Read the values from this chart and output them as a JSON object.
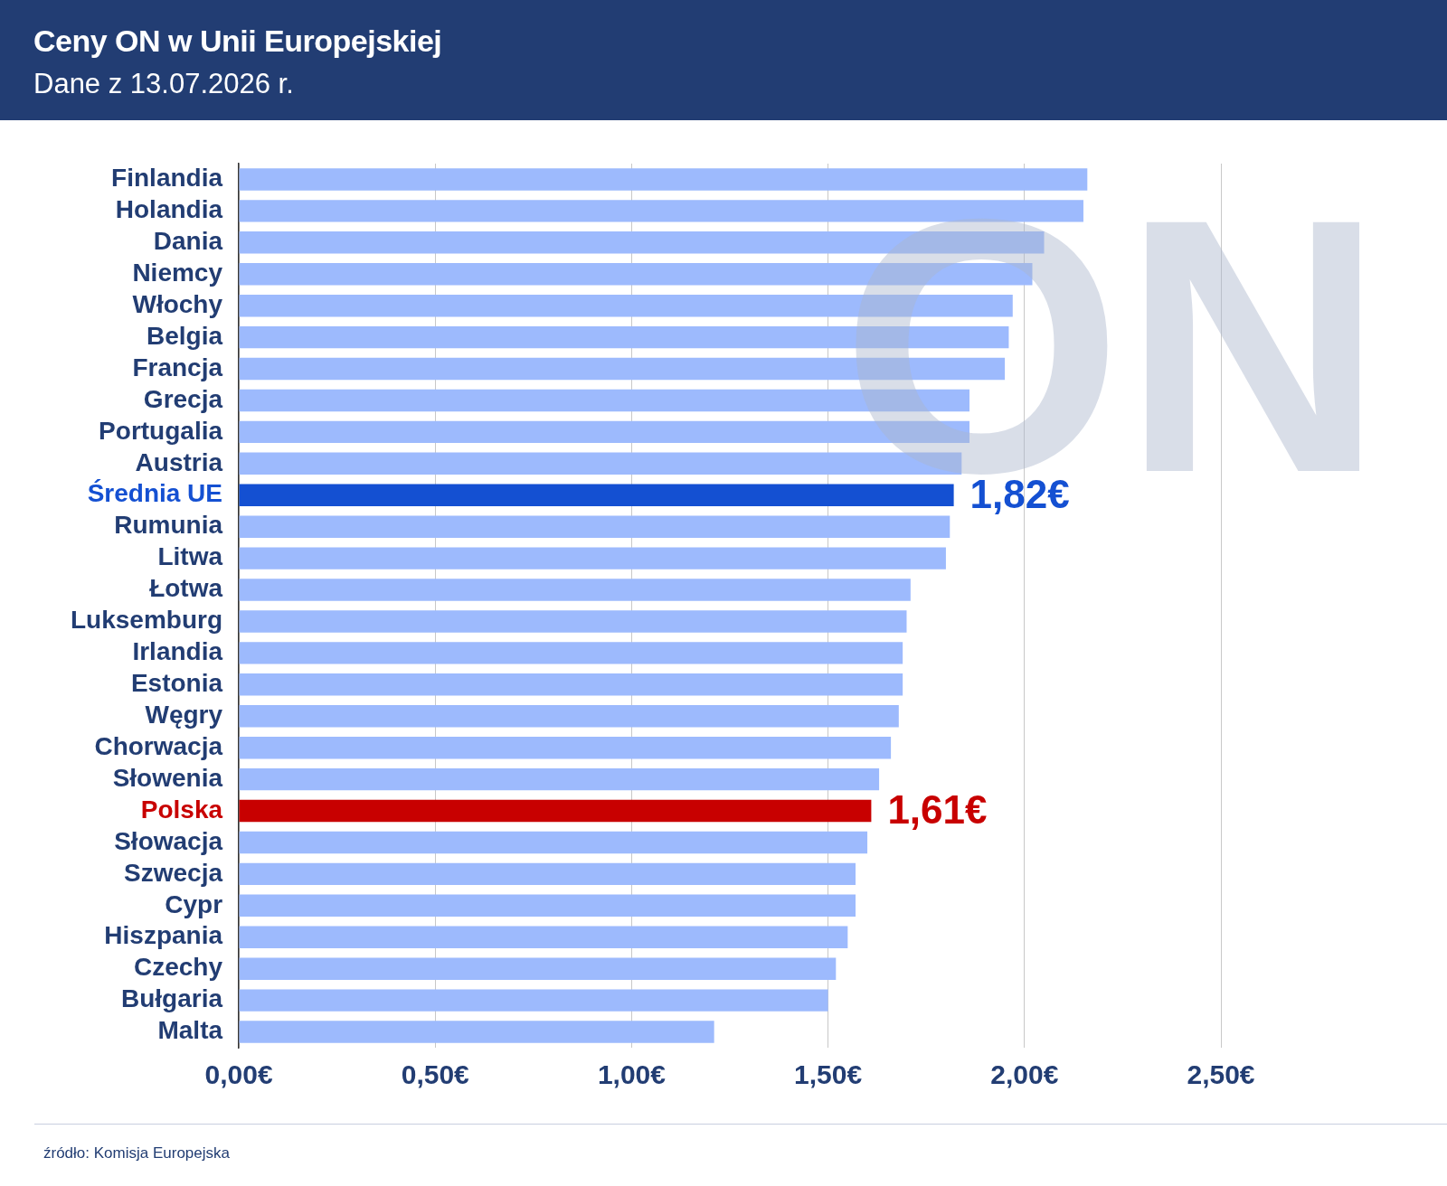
{
  "chart_data": {
    "type": "bar",
    "orientation": "horizontal",
    "title": "Ceny ON w Unii Europejskiej",
    "subtitle": "Dane z 13.07.2026 r.",
    "categories": [
      "Finlandia",
      "Holandia",
      "Dania",
      "Niemcy",
      "Włochy",
      "Belgia",
      "Francja",
      "Grecja",
      "Portugalia",
      "Austria",
      "Średnia UE",
      "Rumunia",
      "Litwa",
      "Łotwa",
      "Luksemburg",
      "Irlandia",
      "Estonia",
      "Węgry",
      "Chorwacja",
      "Słowenia",
      "Polska",
      "Słowacja",
      "Szwecja",
      "Cypr",
      "Hiszpania",
      "Czechy",
      "Bułgaria",
      "Malta"
    ],
    "values": [
      2.16,
      2.15,
      2.05,
      2.02,
      1.97,
      1.96,
      1.95,
      1.86,
      1.86,
      1.84,
      1.82,
      1.81,
      1.8,
      1.71,
      1.7,
      1.69,
      1.69,
      1.68,
      1.66,
      1.63,
      1.61,
      1.6,
      1.57,
      1.57,
      1.55,
      1.52,
      1.5,
      1.21
    ],
    "colors": [
      "#9dbafd",
      "#9dbafd",
      "#9dbafd",
      "#9dbafd",
      "#9dbafd",
      "#9dbafd",
      "#9dbafd",
      "#9dbafd",
      "#9dbafd",
      "#9dbafd",
      "#1450d2",
      "#9dbafd",
      "#9dbafd",
      "#9dbafd",
      "#9dbafd",
      "#9dbafd",
      "#9dbafd",
      "#9dbafd",
      "#9dbafd",
      "#9dbafd",
      "#c80000",
      "#9dbafd",
      "#9dbafd",
      "#9dbafd",
      "#9dbafd",
      "#9dbafd",
      "#9dbafd",
      "#9dbafd"
    ],
    "value_labels": [
      null,
      null,
      null,
      null,
      null,
      null,
      null,
      null,
      null,
      null,
      "1,82€",
      null,
      null,
      null,
      null,
      null,
      null,
      null,
      null,
      null,
      "1,61€",
      null,
      null,
      null,
      null,
      null,
      null,
      null
    ],
    "xlim": [
      0,
      2.5
    ],
    "xticks": [
      {
        "value": 0,
        "label": "0,00€"
      },
      {
        "value": 0.5,
        "label": "0,50€"
      },
      {
        "value": 1,
        "label": "1,00€"
      },
      {
        "value": 1.5,
        "label": "1,50€"
      },
      {
        "value": 2,
        "label": "2,00€"
      },
      {
        "value": 2.5,
        "label": "2,50€"
      }
    ],
    "grid": "x",
    "annotations": [
      "ON",
      "źródło: Komisja Europejska"
    ]
  }
}
